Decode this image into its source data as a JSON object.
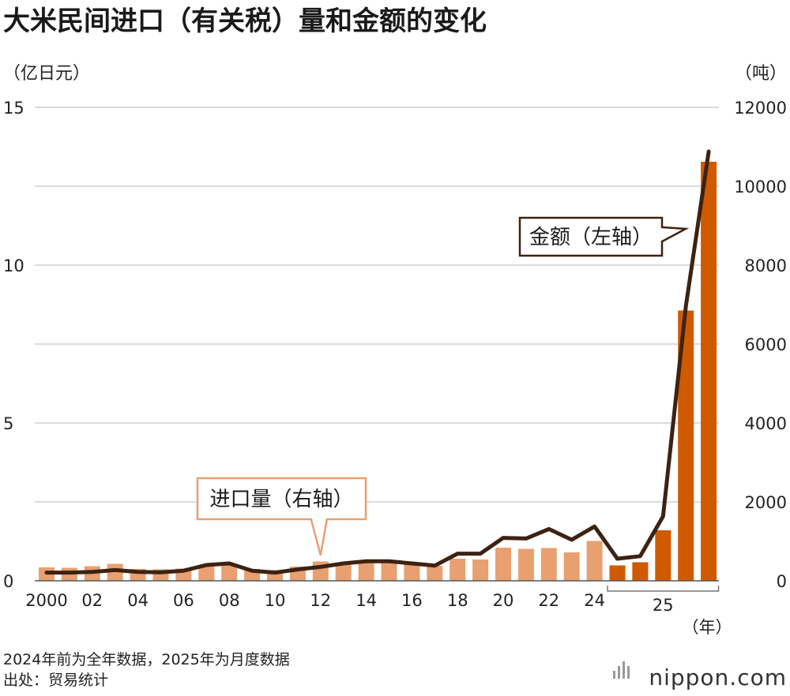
{
  "chart_data": {
    "type": "bar+line",
    "title": "大米民间进口（有关税）量和金额的变化",
    "left_axis": {
      "unit_label": "（亿日元）",
      "ticks": [
        "0",
        "5",
        "10",
        "15"
      ],
      "range": [
        0,
        15
      ]
    },
    "right_axis": {
      "unit_label": "（吨）",
      "ticks": [
        "0",
        "2000",
        "4000",
        "6000",
        "8000",
        "10000",
        "12000"
      ],
      "range": [
        0,
        12000
      ]
    },
    "x_axis": {
      "unit_label": "（年）",
      "tick_labels": [
        {
          "label": "2000",
          "index": 0
        },
        {
          "label": "02",
          "index": 2
        },
        {
          "label": "04",
          "index": 4
        },
        {
          "label": "06",
          "index": 6
        },
        {
          "label": "08",
          "index": 8
        },
        {
          "label": "10",
          "index": 10
        },
        {
          "label": "12",
          "index": 12
        },
        {
          "label": "14",
          "index": 14
        },
        {
          "label": "16",
          "index": 16
        },
        {
          "label": "18",
          "index": 18
        },
        {
          "label": "20",
          "index": 20
        },
        {
          "label": "22",
          "index": 22
        },
        {
          "label": "24",
          "index": 24
        },
        {
          "label": "25",
          "index_from": 25,
          "index_to": 29
        }
      ]
    },
    "categories": [
      "2000",
      "2001",
      "2002",
      "2003",
      "2004",
      "2005",
      "2006",
      "2007",
      "2008",
      "2009",
      "2010",
      "2011",
      "2012",
      "2013",
      "2014",
      "2015",
      "2016",
      "2017",
      "2018",
      "2019",
      "2020",
      "2021",
      "2022",
      "2023",
      "2024",
      "2025-1",
      "2025-2",
      "2025-3",
      "2025-4",
      "2025-5"
    ],
    "series": [
      {
        "name": "进口量（右轴）",
        "kind": "bar",
        "axis": "right",
        "unit": "吨",
        "values": [
          340,
          330,
          370,
          430,
          300,
          290,
          310,
          380,
          420,
          300,
          270,
          360,
          490,
          420,
          480,
          470,
          440,
          380,
          560,
          540,
          840,
          810,
          830,
          720,
          1010,
          390,
          470,
          1280,
          6850,
          10620
        ],
        "colors": [
          "#e8a070",
          "#e8a070",
          "#e8a070",
          "#e8a070",
          "#e8a070",
          "#e8a070",
          "#e8a070",
          "#e8a070",
          "#e8a070",
          "#e8a070",
          "#e8a070",
          "#e8a070",
          "#e8a070",
          "#e8a070",
          "#e8a070",
          "#e8a070",
          "#e8a070",
          "#e8a070",
          "#e8a070",
          "#e8a070",
          "#e8a070",
          "#e8a070",
          "#e8a070",
          "#e8a070",
          "#e8a070",
          "#d05a00",
          "#d05a00",
          "#d05a00",
          "#d05a00",
          "#d05a00"
        ]
      },
      {
        "name": "金额（左轴）",
        "kind": "line",
        "axis": "left",
        "unit": "亿日元",
        "color": "#3d2212",
        "values": [
          0.26,
          0.26,
          0.28,
          0.34,
          0.28,
          0.27,
          0.32,
          0.5,
          0.55,
          0.32,
          0.26,
          0.36,
          0.44,
          0.55,
          0.62,
          0.62,
          0.55,
          0.48,
          0.86,
          0.86,
          1.36,
          1.34,
          1.64,
          1.3,
          1.72,
          0.7,
          0.78,
          2.04,
          8.7,
          13.6
        ]
      }
    ],
    "annotations": [
      {
        "text": "进口量（右轴）",
        "target_series": 0,
        "target_index": 12
      },
      {
        "text": "金额（左轴）",
        "target_series": 1,
        "target_index": 29
      }
    ],
    "notes": [
      "2024年前为全年数据，2025年为月度数据",
      "出处：贸易统计"
    ],
    "source_logo": "nippon.com",
    "grid": true
  }
}
